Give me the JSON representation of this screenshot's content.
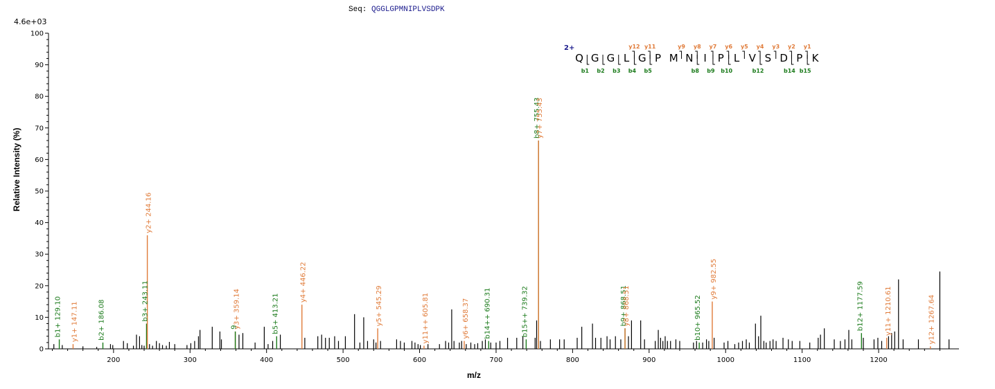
{
  "header": {
    "seq_label": "Seq:",
    "seq_value": "QGGLGPMNIPLVSDPK"
  },
  "colors": {
    "b_ion": "#1a7a1a",
    "y_ion": "#e07b39",
    "unassigned": "#000000",
    "sequence": "#1a1a8c",
    "charge": "#1a1a8c"
  },
  "chart_data": {
    "type": "bar",
    "title": "",
    "xlabel": "m/z",
    "ylabel": "Relative  Intensity (%)",
    "max_intensity_label": "4.6e+03",
    "xlim": [
      115,
      1305
    ],
    "ylim": [
      0,
      100
    ],
    "x_ticks": [
      200,
      300,
      400,
      500,
      600,
      700,
      800,
      900,
      1000,
      1100,
      1200
    ],
    "y_ticks": [
      0,
      10,
      20,
      30,
      40,
      50,
      60,
      70,
      80,
      90,
      100
    ],
    "grid": false,
    "annotated_peaks": [
      {
        "mz": 129.1,
        "intensity": 3.0,
        "ion": "b",
        "label": "b1+ 129.10"
      },
      {
        "mz": 147.11,
        "intensity": 1.5,
        "ion": "y",
        "label": "y1+ 147.11"
      },
      {
        "mz": 186.08,
        "intensity": 2.0,
        "ion": "b",
        "label": "b2+ 186.08"
      },
      {
        "mz": 243.11,
        "intensity": 8.0,
        "ion": "b",
        "label": "b3+ 243.11"
      },
      {
        "mz": 244.16,
        "intensity": 36.0,
        "ion": "y",
        "label": "y2+ 244.16"
      },
      {
        "mz": 359.14,
        "intensity": 5.5,
        "ion": "y",
        "label": "y3+ 359.14"
      },
      {
        "mz": 359.14,
        "intensity": 5.5,
        "ion": "b",
        "label": "9"
      },
      {
        "mz": 413.21,
        "intensity": 4.0,
        "ion": "b",
        "label": "b5+ 413.21"
      },
      {
        "mz": 446.22,
        "intensity": 14.0,
        "ion": "y",
        "label": "y4+ 446.22"
      },
      {
        "mz": 545.29,
        "intensity": 6.5,
        "ion": "y",
        "label": "y5+ 545.29"
      },
      {
        "mz": 605.81,
        "intensity": 1.0,
        "ion": "y",
        "label": "y11++ 605.81"
      },
      {
        "mz": 658.37,
        "intensity": 2.5,
        "ion": "y",
        "label": "y6+ 658.37"
      },
      {
        "mz": 690.31,
        "intensity": 2.5,
        "ion": "b",
        "label": "b14++ 690.31"
      },
      {
        "mz": 739.32,
        "intensity": 3.0,
        "ion": "b",
        "label": "b15++ 739.32"
      },
      {
        "mz": 755.43,
        "intensity": 66.0,
        "ion": "b",
        "label": "b8+ 755.43"
      },
      {
        "mz": 755.43,
        "intensity": 66.0,
        "ion": "y",
        "label": "y7+ 755.43"
      },
      {
        "mz": 868.51,
        "intensity": 6.5,
        "ion": "b",
        "label": "b9+ 868.51"
      },
      {
        "mz": 868.51,
        "intensity": 6.5,
        "ion": "y",
        "label": "y8+ 868.51"
      },
      {
        "mz": 965.52,
        "intensity": 2.0,
        "ion": "b",
        "label": "b10+ 965.52"
      },
      {
        "mz": 982.55,
        "intensity": 15.0,
        "ion": "y",
        "label": "y9+ 982.55"
      },
      {
        "mz": 1177.59,
        "intensity": 5.0,
        "ion": "b",
        "label": "b12+ 1177.59"
      },
      {
        "mz": 1210.61,
        "intensity": 3.5,
        "ion": "y",
        "label": "y11+ 1210.61"
      },
      {
        "mz": 1267.64,
        "intensity": 0.8,
        "ion": "y",
        "label": "y12+ 1267.64"
      }
    ],
    "unannotated_peaks": [
      {
        "mz": 122,
        "intensity": 1.5
      },
      {
        "mz": 133,
        "intensity": 1.2
      },
      {
        "mz": 160,
        "intensity": 0.8
      },
      {
        "mz": 178,
        "intensity": 0.6
      },
      {
        "mz": 196,
        "intensity": 1.5
      },
      {
        "mz": 199,
        "intensity": 1.2
      },
      {
        "mz": 213,
        "intensity": 2.5
      },
      {
        "mz": 218,
        "intensity": 1.8
      },
      {
        "mz": 226,
        "intensity": 1.0
      },
      {
        "mz": 230,
        "intensity": 4.5
      },
      {
        "mz": 234,
        "intensity": 4.0
      },
      {
        "mz": 237,
        "intensity": 1.2
      },
      {
        "mz": 240,
        "intensity": 1.0
      },
      {
        "mz": 247,
        "intensity": 1.5
      },
      {
        "mz": 251,
        "intensity": 1.0
      },
      {
        "mz": 256,
        "intensity": 2.5
      },
      {
        "mz": 260,
        "intensity": 1.8
      },
      {
        "mz": 264,
        "intensity": 1.2
      },
      {
        "mz": 269,
        "intensity": 1.0
      },
      {
        "mz": 273,
        "intensity": 2.2
      },
      {
        "mz": 280,
        "intensity": 1.5
      },
      {
        "mz": 296,
        "intensity": 1.2
      },
      {
        "mz": 301,
        "intensity": 1.8
      },
      {
        "mz": 306,
        "intensity": 2.5
      },
      {
        "mz": 311,
        "intensity": 4.0
      },
      {
        "mz": 313,
        "intensity": 6.0
      },
      {
        "mz": 329,
        "intensity": 7.0
      },
      {
        "mz": 339,
        "intensity": 5.5
      },
      {
        "mz": 341,
        "intensity": 3.0
      },
      {
        "mz": 364,
        "intensity": 4.5
      },
      {
        "mz": 369,
        "intensity": 5.0
      },
      {
        "mz": 385,
        "intensity": 2.0
      },
      {
        "mz": 397,
        "intensity": 7.0
      },
      {
        "mz": 402,
        "intensity": 1.5
      },
      {
        "mz": 408,
        "intensity": 2.5
      },
      {
        "mz": 418,
        "intensity": 4.5
      },
      {
        "mz": 450,
        "intensity": 3.5
      },
      {
        "mz": 467,
        "intensity": 4.0
      },
      {
        "mz": 472,
        "intensity": 4.5
      },
      {
        "mz": 477,
        "intensity": 3.5
      },
      {
        "mz": 482,
        "intensity": 3.5
      },
      {
        "mz": 489,
        "intensity": 4.0
      },
      {
        "mz": 494,
        "intensity": 2.5
      },
      {
        "mz": 503,
        "intensity": 4.0
      },
      {
        "mz": 515,
        "intensity": 11.0
      },
      {
        "mz": 522,
        "intensity": 2.0
      },
      {
        "mz": 527,
        "intensity": 10.0
      },
      {
        "mz": 532,
        "intensity": 2.5
      },
      {
        "mz": 540,
        "intensity": 3.0
      },
      {
        "mz": 543,
        "intensity": 2.0
      },
      {
        "mz": 549,
        "intensity": 2.5
      },
      {
        "mz": 570,
        "intensity": 3.0
      },
      {
        "mz": 575,
        "intensity": 2.5
      },
      {
        "mz": 580,
        "intensity": 2.0
      },
      {
        "mz": 590,
        "intensity": 2.5
      },
      {
        "mz": 594,
        "intensity": 2.0
      },
      {
        "mz": 598,
        "intensity": 1.5
      },
      {
        "mz": 601,
        "intensity": 1.2
      },
      {
        "mz": 611,
        "intensity": 1.5
      },
      {
        "mz": 626,
        "intensity": 1.5
      },
      {
        "mz": 634,
        "intensity": 2.5
      },
      {
        "mz": 638,
        "intensity": 2.0
      },
      {
        "mz": 642,
        "intensity": 12.5
      },
      {
        "mz": 645,
        "intensity": 2.5
      },
      {
        "mz": 652,
        "intensity": 2.0
      },
      {
        "mz": 655,
        "intensity": 2.5
      },
      {
        "mz": 661,
        "intensity": 1.5
      },
      {
        "mz": 667,
        "intensity": 2.0
      },
      {
        "mz": 672,
        "intensity": 1.5
      },
      {
        "mz": 676,
        "intensity": 1.8
      },
      {
        "mz": 682,
        "intensity": 2.5
      },
      {
        "mz": 686,
        "intensity": 3.0
      },
      {
        "mz": 693,
        "intensity": 2.0
      },
      {
        "mz": 700,
        "intensity": 2.0
      },
      {
        "mz": 705,
        "intensity": 2.5
      },
      {
        "mz": 715,
        "intensity": 3.5
      },
      {
        "mz": 727,
        "intensity": 3.5
      },
      {
        "mz": 735,
        "intensity": 4.0
      },
      {
        "mz": 751,
        "intensity": 3.5
      },
      {
        "mz": 753,
        "intensity": 9.0
      },
      {
        "mz": 758,
        "intensity": 2.5
      },
      {
        "mz": 771,
        "intensity": 3.0
      },
      {
        "mz": 783,
        "intensity": 3.0
      },
      {
        "mz": 789,
        "intensity": 3.0
      },
      {
        "mz": 806,
        "intensity": 3.5
      },
      {
        "mz": 812,
        "intensity": 7.0
      },
      {
        "mz": 826,
        "intensity": 8.0
      },
      {
        "mz": 830,
        "intensity": 3.5
      },
      {
        "mz": 837,
        "intensity": 3.5
      },
      {
        "mz": 845,
        "intensity": 4.0
      },
      {
        "mz": 849,
        "intensity": 3.0
      },
      {
        "mz": 856,
        "intensity": 4.0
      },
      {
        "mz": 863,
        "intensity": 3.0
      },
      {
        "mz": 873,
        "intensity": 4.0
      },
      {
        "mz": 877,
        "intensity": 9.0
      },
      {
        "mz": 889,
        "intensity": 9.0
      },
      {
        "mz": 894,
        "intensity": 3.0
      },
      {
        "mz": 908,
        "intensity": 2.5
      },
      {
        "mz": 912,
        "intensity": 6.0
      },
      {
        "mz": 915,
        "intensity": 3.5
      },
      {
        "mz": 918,
        "intensity": 2.5
      },
      {
        "mz": 921,
        "intensity": 4.0
      },
      {
        "mz": 924,
        "intensity": 2.5
      },
      {
        "mz": 928,
        "intensity": 2.5
      },
      {
        "mz": 935,
        "intensity": 3.0
      },
      {
        "mz": 940,
        "intensity": 2.5
      },
      {
        "mz": 958,
        "intensity": 2.0
      },
      {
        "mz": 962,
        "intensity": 2.5
      },
      {
        "mz": 970,
        "intensity": 2.0
      },
      {
        "mz": 975,
        "intensity": 3.0
      },
      {
        "mz": 978,
        "intensity": 2.5
      },
      {
        "mz": 985,
        "intensity": 3.5
      },
      {
        "mz": 998,
        "intensity": 2.0
      },
      {
        "mz": 1003,
        "intensity": 2.5
      },
      {
        "mz": 1012,
        "intensity": 1.5
      },
      {
        "mz": 1017,
        "intensity": 2.0
      },
      {
        "mz": 1022,
        "intensity": 2.5
      },
      {
        "mz": 1027,
        "intensity": 3.0
      },
      {
        "mz": 1031,
        "intensity": 2.0
      },
      {
        "mz": 1039,
        "intensity": 8.0
      },
      {
        "mz": 1043,
        "intensity": 4.0
      },
      {
        "mz": 1046,
        "intensity": 10.5
      },
      {
        "mz": 1050,
        "intensity": 2.5
      },
      {
        "mz": 1053,
        "intensity": 2.0
      },
      {
        "mz": 1058,
        "intensity": 2.5
      },
      {
        "mz": 1062,
        "intensity": 3.0
      },
      {
        "mz": 1066,
        "intensity": 2.5
      },
      {
        "mz": 1075,
        "intensity": 3.5
      },
      {
        "mz": 1082,
        "intensity": 3.0
      },
      {
        "mz": 1087,
        "intensity": 2.5
      },
      {
        "mz": 1097,
        "intensity": 2.5
      },
      {
        "mz": 1110,
        "intensity": 2.0
      },
      {
        "mz": 1121,
        "intensity": 3.5
      },
      {
        "mz": 1124,
        "intensity": 4.5
      },
      {
        "mz": 1129,
        "intensity": 6.5
      },
      {
        "mz": 1142,
        "intensity": 3.0
      },
      {
        "mz": 1150,
        "intensity": 2.5
      },
      {
        "mz": 1156,
        "intensity": 3.0
      },
      {
        "mz": 1161,
        "intensity": 6.0
      },
      {
        "mz": 1165,
        "intensity": 3.0
      },
      {
        "mz": 1180,
        "intensity": 3.5
      },
      {
        "mz": 1194,
        "intensity": 3.0
      },
      {
        "mz": 1199,
        "intensity": 3.5
      },
      {
        "mz": 1204,
        "intensity": 2.5
      },
      {
        "mz": 1213,
        "intensity": 4.0
      },
      {
        "mz": 1217,
        "intensity": 5.0
      },
      {
        "mz": 1221,
        "intensity": 5.5
      },
      {
        "mz": 1226,
        "intensity": 22.0
      },
      {
        "mz": 1232,
        "intensity": 3.0
      },
      {
        "mz": 1252,
        "intensity": 3.0
      },
      {
        "mz": 1280,
        "intensity": 24.5
      },
      {
        "mz": 1292,
        "intensity": 3.0
      }
    ]
  },
  "sequence_diagram": {
    "charge_label": "2+",
    "residues": [
      "Q",
      "G",
      "G",
      "L",
      "G",
      "P",
      "M",
      "N",
      "I",
      "P",
      "L",
      "V",
      "S",
      "D",
      "P",
      "K"
    ],
    "y_ions": [
      {
        "after": 4,
        "label": "y12"
      },
      {
        "after": 5,
        "label": "y11"
      },
      {
        "after": 7,
        "label": "y9"
      },
      {
        "after": 8,
        "label": "y8"
      },
      {
        "after": 9,
        "label": "y7"
      },
      {
        "after": 10,
        "label": "y6"
      },
      {
        "after": 11,
        "label": "y5"
      },
      {
        "after": 12,
        "label": "y4"
      },
      {
        "after": 13,
        "label": "y3"
      },
      {
        "after": 14,
        "label": "y2"
      },
      {
        "after": 15,
        "label": "y1"
      }
    ],
    "b_ions": [
      {
        "after": 1,
        "label": "b1"
      },
      {
        "after": 2,
        "label": "b2"
      },
      {
        "after": 3,
        "label": "b3"
      },
      {
        "after": 4,
        "label": "b4"
      },
      {
        "after": 5,
        "label": "b5"
      },
      {
        "after": 8,
        "label": "b8"
      },
      {
        "after": 9,
        "label": "b9"
      },
      {
        "after": 10,
        "label": "b10"
      },
      {
        "after": 12,
        "label": "b12"
      },
      {
        "after": 14,
        "label": "b14"
      },
      {
        "after": 15,
        "label": "b15"
      }
    ]
  }
}
